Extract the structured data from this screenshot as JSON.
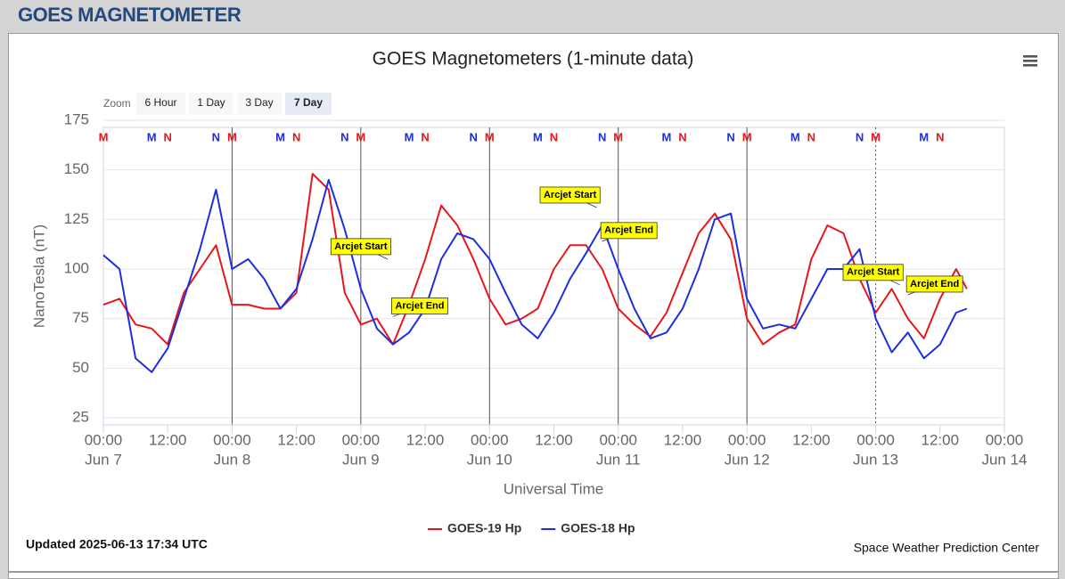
{
  "header": {
    "title": "GOES MAGNETOMETER"
  },
  "zoom": {
    "label": "Zoom",
    "buttons": [
      "6 Hour",
      "1 Day",
      "3 Day",
      "7 Day"
    ],
    "selected": 3
  },
  "footer": {
    "updated": "Updated 2025-06-13 17:34 UTC",
    "credit": "Space Weather Prediction Center"
  },
  "chart_data": {
    "type": "line",
    "title": "GOES Magnetometers (1-minute data)",
    "x_label": "Universal Time",
    "y_label": "NanoTesla (nT)",
    "x": [
      "Jun 7 00:00",
      "Jun 7 03:00",
      "Jun 7 06:00",
      "Jun 7 09:00",
      "Jun 7 12:00",
      "Jun 7 15:00",
      "Jun 7 18:00",
      "Jun 7 21:00",
      "Jun 8 00:00",
      "Jun 8 03:00",
      "Jun 8 06:00",
      "Jun 8 09:00",
      "Jun 8 12:00",
      "Jun 8 15:00",
      "Jun 8 18:00",
      "Jun 8 21:00",
      "Jun 9 00:00",
      "Jun 9 03:00",
      "Jun 9 06:00",
      "Jun 9 09:00",
      "Jun 9 12:00",
      "Jun 9 15:00",
      "Jun 9 18:00",
      "Jun 9 21:00",
      "Jun 10 00:00",
      "Jun 10 03:00",
      "Jun 10 06:00",
      "Jun 10 09:00",
      "Jun 10 12:00",
      "Jun 10 15:00",
      "Jun 10 18:00",
      "Jun 10 21:00",
      "Jun 11 00:00",
      "Jun 11 03:00",
      "Jun 11 06:00",
      "Jun 11 09:00",
      "Jun 11 12:00",
      "Jun 11 15:00",
      "Jun 11 18:00",
      "Jun 11 21:00",
      "Jun 12 00:00",
      "Jun 12 03:00",
      "Jun 12 06:00",
      "Jun 12 09:00",
      "Jun 12 12:00",
      "Jun 12 15:00",
      "Jun 12 18:00",
      "Jun 12 21:00",
      "Jun 13 00:00",
      "Jun 13 03:00",
      "Jun 13 06:00",
      "Jun 13 09:00",
      "Jun 13 12:00",
      "Jun 13 15:00",
      "Jun 13 17:00"
    ],
    "series": [
      {
        "name": "GOES-19 Hp",
        "color": "#e8161b",
        "values": [
          82,
          85,
          72,
          70,
          62,
          88,
          100,
          112,
          82,
          82,
          80,
          80,
          88,
          148,
          140,
          88,
          72,
          75,
          62,
          82,
          105,
          132,
          122,
          105,
          85,
          72,
          75,
          80,
          100,
          112,
          112,
          100,
          80,
          72,
          66,
          78,
          98,
          118,
          128,
          115,
          75,
          62,
          68,
          72,
          105,
          122,
          118,
          95,
          78,
          90,
          75,
          65,
          85,
          100,
          90
        ]
      },
      {
        "name": "GOES-18 Hp",
        "color": "#1d2ee0",
        "values": [
          107,
          100,
          55,
          48,
          60,
          85,
          110,
          140,
          100,
          105,
          95,
          80,
          90,
          115,
          145,
          120,
          90,
          70,
          62,
          68,
          80,
          105,
          118,
          115,
          105,
          88,
          72,
          65,
          78,
          95,
          108,
          122,
          100,
          80,
          65,
          68,
          80,
          100,
          125,
          128,
          85,
          70,
          72,
          70,
          85,
          100,
          100,
          110,
          75,
          58,
          68,
          55,
          62,
          78,
          80
        ]
      }
    ],
    "xlim": [
      "Jun 7 00:00",
      "Jun 14 00:00"
    ],
    "xticks": [
      {
        "value": "Jun 7 00:00",
        "label": "00:00",
        "sublabel": "Jun 7"
      },
      {
        "value": "Jun 7 12:00",
        "label": "12:00"
      },
      {
        "value": "Jun 8 00:00",
        "label": "00:00",
        "sublabel": "Jun 8"
      },
      {
        "value": "Jun 8 12:00",
        "label": "12:00"
      },
      {
        "value": "Jun 9 00:00",
        "label": "00:00",
        "sublabel": "Jun 9"
      },
      {
        "value": "Jun 9 12:00",
        "label": "12:00"
      },
      {
        "value": "Jun 10 00:00",
        "label": "00:00",
        "sublabel": "Jun 10"
      },
      {
        "value": "Jun 10 12:00",
        "label": "12:00"
      },
      {
        "value": "Jun 11 00:00",
        "label": "00:00",
        "sublabel": "Jun 11"
      },
      {
        "value": "Jun 11 12:00",
        "label": "12:00"
      },
      {
        "value": "Jun 12 00:00",
        "label": "00:00",
        "sublabel": "Jun 12"
      },
      {
        "value": "Jun 12 12:00",
        "label": "12:00"
      },
      {
        "value": "Jun 13 00:00",
        "label": "00:00",
        "sublabel": "Jun 13"
      },
      {
        "value": "Jun 13 12:00",
        "label": "12:00"
      },
      {
        "value": "Jun 14 00:00",
        "label": "00:00",
        "sublabel": "Jun 14"
      }
    ],
    "ylim": [
      25,
      175
    ],
    "yticks": [
      25,
      50,
      75,
      100,
      125,
      150,
      175
    ],
    "grid": true,
    "markers": [
      {
        "x": "Jun 7 00:00",
        "label": "M",
        "color": "#e8161b"
      },
      {
        "x": "Jun 8 00:00",
        "label": "M",
        "color": "#e8161b"
      },
      {
        "x": "Jun 9 00:00",
        "label": "M",
        "color": "#e8161b"
      },
      {
        "x": "Jun 10 00:00",
        "label": "M",
        "color": "#e8161b"
      },
      {
        "x": "Jun 11 00:00",
        "label": "M",
        "color": "#e8161b"
      },
      {
        "x": "Jun 12 00:00",
        "label": "M",
        "color": "#e8161b"
      },
      {
        "x": "Jun 13 00:00",
        "label": "M",
        "color": "#e8161b"
      },
      {
        "x": "Jun 7 09:00",
        "label": "M",
        "color": "#1d2ee0"
      },
      {
        "x": "Jun 8 09:00",
        "label": "M",
        "color": "#1d2ee0"
      },
      {
        "x": "Jun 9 09:00",
        "label": "M",
        "color": "#1d2ee0"
      },
      {
        "x": "Jun 10 09:00",
        "label": "M",
        "color": "#1d2ee0"
      },
      {
        "x": "Jun 11 09:00",
        "label": "M",
        "color": "#1d2ee0"
      },
      {
        "x": "Jun 12 09:00",
        "label": "M",
        "color": "#1d2ee0"
      },
      {
        "x": "Jun 13 09:00",
        "label": "M",
        "color": "#1d2ee0"
      },
      {
        "x": "Jun 7 12:00",
        "label": "N",
        "color": "#e8161b"
      },
      {
        "x": "Jun 8 12:00",
        "label": "N",
        "color": "#e8161b"
      },
      {
        "x": "Jun 9 12:00",
        "label": "N",
        "color": "#e8161b"
      },
      {
        "x": "Jun 10 12:00",
        "label": "N",
        "color": "#e8161b"
      },
      {
        "x": "Jun 11 12:00",
        "label": "N",
        "color": "#e8161b"
      },
      {
        "x": "Jun 12 12:00",
        "label": "N",
        "color": "#e8161b"
      },
      {
        "x": "Jun 13 12:00",
        "label": "N",
        "color": "#e8161b"
      },
      {
        "x": "Jun 7 21:00",
        "label": "N",
        "color": "#1d2ee0"
      },
      {
        "x": "Jun 8 21:00",
        "label": "N",
        "color": "#1d2ee0"
      },
      {
        "x": "Jun 9 21:00",
        "label": "N",
        "color": "#1d2ee0"
      },
      {
        "x": "Jun 10 21:00",
        "label": "N",
        "color": "#1d2ee0"
      },
      {
        "x": "Jun 11 21:00",
        "label": "N",
        "color": "#1d2ee0"
      },
      {
        "x": "Jun 12 21:00",
        "label": "N",
        "color": "#1d2ee0"
      }
    ],
    "annotations": [
      {
        "text": "Arcjet Start",
        "x": "Jun 9 05:00",
        "y": 105
      },
      {
        "text": "Arcjet End",
        "x": "Jun 9 06:00",
        "y": 76
      },
      {
        "text": "Arcjet Start",
        "x": "Jun 10 20:00",
        "y": 131
      },
      {
        "text": "Arcjet End",
        "x": "Jun 10 21:00",
        "y": 114
      },
      {
        "text": "Arcjet Start",
        "x": "Jun 13 04:30",
        "y": 92
      },
      {
        "text": "Arcjet End",
        "x": "Jun 13 06:00",
        "y": 87
      }
    ]
  }
}
